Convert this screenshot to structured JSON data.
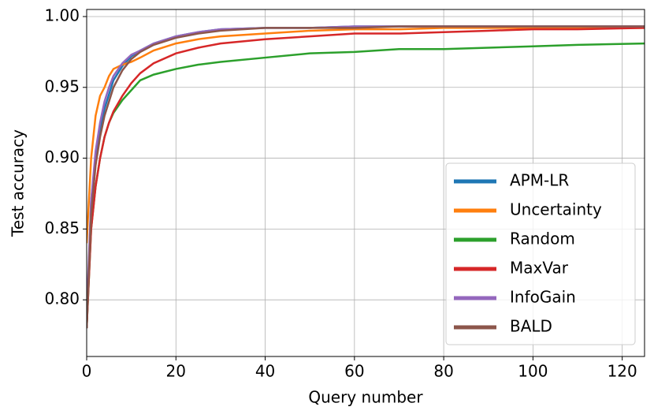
{
  "chart_data": {
    "type": "line",
    "xlabel": "Query number",
    "ylabel": "Test accuracy",
    "x": [
      0,
      1,
      2,
      3,
      4,
      5,
      6,
      8,
      10,
      12,
      15,
      20,
      25,
      30,
      40,
      50,
      60,
      70,
      80,
      90,
      100,
      110,
      125
    ],
    "series": [
      {
        "name": "APM-LR",
        "color": "#1f77b4",
        "values": [
          0.78,
          0.87,
          0.9,
          0.92,
          0.935,
          0.945,
          0.955,
          0.965,
          0.972,
          0.976,
          0.981,
          0.986,
          0.989,
          0.991,
          0.992,
          0.992,
          0.993,
          0.993,
          0.993,
          0.993,
          0.993,
          0.993,
          0.993
        ]
      },
      {
        "name": "Uncertainty",
        "color": "#ff7f0e",
        "values": [
          0.84,
          0.9,
          0.93,
          0.944,
          0.95,
          0.958,
          0.963,
          0.966,
          0.968,
          0.971,
          0.976,
          0.981,
          0.984,
          0.986,
          0.988,
          0.99,
          0.991,
          0.991,
          0.992,
          0.992,
          0.992,
          0.992,
          0.992
        ]
      },
      {
        "name": "Random",
        "color": "#2ca02c",
        "values": [
          0.78,
          0.85,
          0.88,
          0.9,
          0.915,
          0.925,
          0.932,
          0.941,
          0.948,
          0.955,
          0.959,
          0.963,
          0.966,
          0.968,
          0.971,
          0.974,
          0.975,
          0.977,
          0.977,
          0.978,
          0.979,
          0.98,
          0.981
        ]
      },
      {
        "name": "MaxVar",
        "color": "#d62728",
        "values": [
          0.78,
          0.85,
          0.88,
          0.9,
          0.915,
          0.925,
          0.933,
          0.944,
          0.953,
          0.96,
          0.967,
          0.974,
          0.978,
          0.981,
          0.984,
          0.986,
          0.988,
          0.988,
          0.989,
          0.99,
          0.991,
          0.991,
          0.992
        ]
      },
      {
        "name": "InfoGain",
        "color": "#9467bd",
        "values": [
          0.79,
          0.87,
          0.905,
          0.925,
          0.94,
          0.95,
          0.958,
          0.967,
          0.973,
          0.976,
          0.981,
          0.986,
          0.989,
          0.991,
          0.992,
          0.992,
          0.993,
          0.993,
          0.993,
          0.993,
          0.993,
          0.993,
          0.993
        ]
      },
      {
        "name": "BALD",
        "color": "#8c564b",
        "values": [
          0.78,
          0.86,
          0.895,
          0.915,
          0.93,
          0.94,
          0.95,
          0.962,
          0.97,
          0.975,
          0.98,
          0.985,
          0.988,
          0.99,
          0.992,
          0.992,
          0.992,
          0.993,
          0.993,
          0.993,
          0.993,
          0.993,
          0.993
        ]
      }
    ],
    "xlim": [
      0,
      125
    ],
    "xticks": [
      0,
      20,
      40,
      60,
      80,
      100,
      120
    ],
    "ylim": [
      0.76,
      1.005
    ],
    "yticks": [
      {
        "value": 0.8,
        "label": "0.80"
      },
      {
        "value": 0.85,
        "label": "0.85"
      },
      {
        "value": 0.9,
        "label": "0.90"
      },
      {
        "value": 0.95,
        "label": "0.95"
      },
      {
        "value": 1.0,
        "label": "1.00"
      }
    ],
    "grid": true,
    "legend": "lower right"
  }
}
